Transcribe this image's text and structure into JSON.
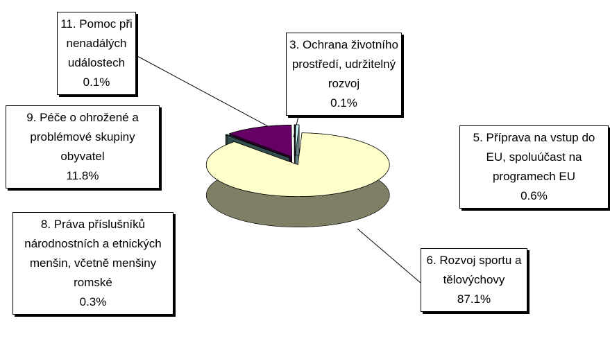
{
  "chart_data": {
    "type": "pie3d",
    "categories": [
      "3. Ochrana životního prostředí, udržitelný rozvoj",
      "5. Příprava na vstup do EU, spoluúčast na programech EU",
      "6. Rozvoj sportu a tělovýchovy",
      "8. Práva příslušníků národnostních a etnických menšin, včetně menšiny romské",
      "9. Péče o ohrožené a problémové skupiny obyvatel",
      "11. Pomoc při nenadálých událostech"
    ],
    "values": [
      0.1,
      0.6,
      87.1,
      0.3,
      11.8,
      0.1
    ],
    "value_labels": [
      "0.1%",
      "0.6%",
      "87.1%",
      "0.3%",
      "11.8%",
      "0.1%"
    ],
    "colors": [
      "#993366",
      "#CCFFFF",
      "#FFFFCC",
      "#669999",
      "#660066",
      "#9999FF"
    ]
  }
}
